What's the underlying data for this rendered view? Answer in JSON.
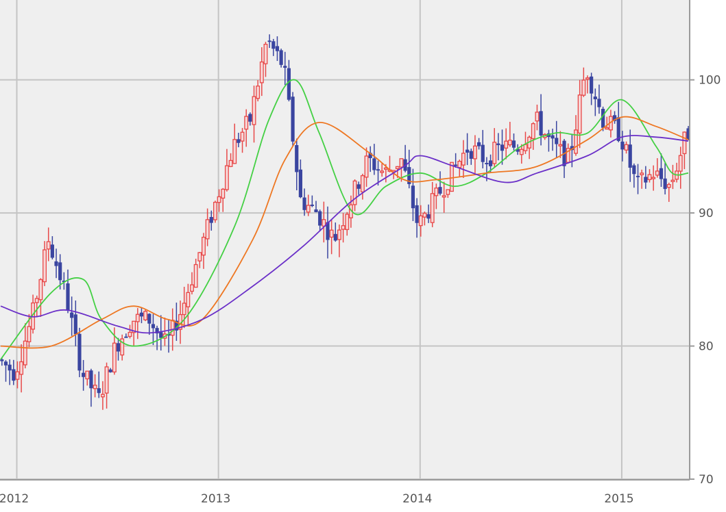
{
  "chart_data": {
    "type": "candlestick",
    "title": "",
    "xlabel": "",
    "ylabel": "",
    "ylim": [
      70,
      106
    ],
    "xlim": [
      "2011-12",
      "2015-05"
    ],
    "y_ticks": [
      70,
      80,
      90,
      100
    ],
    "y_tick_labels": [
      "70",
      "80",
      "90",
      "100"
    ],
    "x_ticks": [
      "2012-01",
      "2013-01",
      "2014-01",
      "2015-01"
    ],
    "x_tick_labels": [
      "2012",
      "2013",
      "2014",
      "2015"
    ],
    "grid": true,
    "y_axis_position": "right",
    "legend": "none",
    "colors": {
      "background": "#efefef",
      "grid": "#c4c4c4",
      "up": "#e84848",
      "down": "#3a45a0",
      "ma_short": "#44d044",
      "ma_mid": "#ee7722",
      "ma_long": "#6a2fc8"
    },
    "price_path": [
      [
        "2011-12",
        79
      ],
      [
        "2012-01",
        78
      ],
      [
        "2012-02",
        82
      ],
      [
        "2012-03",
        88
      ],
      [
        "2012-04",
        84
      ],
      [
        "2012-05",
        78
      ],
      [
        "2012-06",
        76
      ],
      [
        "2012-07",
        80
      ],
      [
        "2012-08",
        82
      ],
      [
        "2012-09",
        82
      ],
      [
        "2012-10",
        80
      ],
      [
        "2012-11",
        83
      ],
      [
        "2012-12",
        87
      ],
      [
        "2013-01",
        91
      ],
      [
        "2013-02",
        95
      ],
      [
        "2013-03",
        97
      ],
      [
        "2013-04",
        103
      ],
      [
        "2013-05",
        101
      ],
      [
        "2013-06",
        91
      ],
      [
        "2013-07",
        90
      ],
      [
        "2013-08",
        88
      ],
      [
        "2013-09",
        91
      ],
      [
        "2013-10",
        94
      ],
      [
        "2013-11",
        93
      ],
      [
        "2013-12",
        94
      ],
      [
        "2014-01",
        89
      ],
      [
        "2014-02",
        91
      ],
      [
        "2014-03",
        93
      ],
      [
        "2014-04",
        95
      ],
      [
        "2014-05",
        94
      ],
      [
        "2014-06",
        95
      ],
      [
        "2014-07",
        95
      ],
      [
        "2014-08",
        97
      ],
      [
        "2014-09",
        95
      ],
      [
        "2014-10",
        94
      ],
      [
        "2014-11",
        101
      ],
      [
        "2014-12",
        97
      ],
      [
        "2015-01",
        96
      ],
      [
        "2015-02",
        92
      ],
      [
        "2015-03",
        93
      ],
      [
        "2015-04",
        92
      ],
      [
        "2015-05",
        96
      ]
    ],
    "series": [
      {
        "values": [
          [
            2011.92,
            79
          ],
          [
            2012.17,
            84
          ],
          [
            2012.33,
            85
          ],
          [
            2012.42,
            82
          ],
          [
            2012.58,
            80
          ],
          [
            2012.83,
            82
          ],
          [
            2013.08,
            89
          ],
          [
            2013.25,
            97
          ],
          [
            2013.38,
            100
          ],
          [
            2013.5,
            96
          ],
          [
            2013.67,
            90
          ],
          [
            2013.83,
            92
          ],
          [
            2014.0,
            93
          ],
          [
            2014.17,
            92
          ],
          [
            2014.33,
            93
          ],
          [
            2014.5,
            95
          ],
          [
            2014.67,
            96
          ],
          [
            2014.83,
            96
          ],
          [
            2015.0,
            98.5
          ],
          [
            2015.17,
            95
          ],
          [
            2015.25,
            93
          ],
          [
            2015.33,
            93
          ]
        ]
      },
      {
        "values": [
          [
            2011.92,
            80
          ],
          [
            2012.17,
            80
          ],
          [
            2012.42,
            82
          ],
          [
            2012.58,
            83
          ],
          [
            2012.75,
            82
          ],
          [
            2012.92,
            82
          ],
          [
            2013.17,
            88
          ],
          [
            2013.33,
            94
          ],
          [
            2013.5,
            96.8
          ],
          [
            2013.75,
            94.5
          ],
          [
            2013.92,
            92.5
          ],
          [
            2014.08,
            92.5
          ],
          [
            2014.33,
            93
          ],
          [
            2014.58,
            93.5
          ],
          [
            2014.83,
            95.5
          ],
          [
            2015.0,
            97.2
          ],
          [
            2015.17,
            96.5
          ],
          [
            2015.33,
            95.5
          ]
        ]
      },
      {
        "values": [
          [
            2011.92,
            83
          ],
          [
            2012.08,
            82.2
          ],
          [
            2012.25,
            82.7
          ],
          [
            2012.5,
            81.5
          ],
          [
            2012.67,
            81
          ],
          [
            2012.92,
            82
          ],
          [
            2013.17,
            84.5
          ],
          [
            2013.42,
            87.5
          ],
          [
            2013.67,
            91
          ],
          [
            2013.92,
            93.5
          ],
          [
            2014.0,
            94.3
          ],
          [
            2014.17,
            93.5
          ],
          [
            2014.42,
            92.3
          ],
          [
            2014.58,
            93
          ],
          [
            2014.83,
            94.3
          ],
          [
            2015.0,
            95.7
          ],
          [
            2015.17,
            95.7
          ],
          [
            2015.33,
            95.4
          ]
        ]
      }
    ]
  }
}
